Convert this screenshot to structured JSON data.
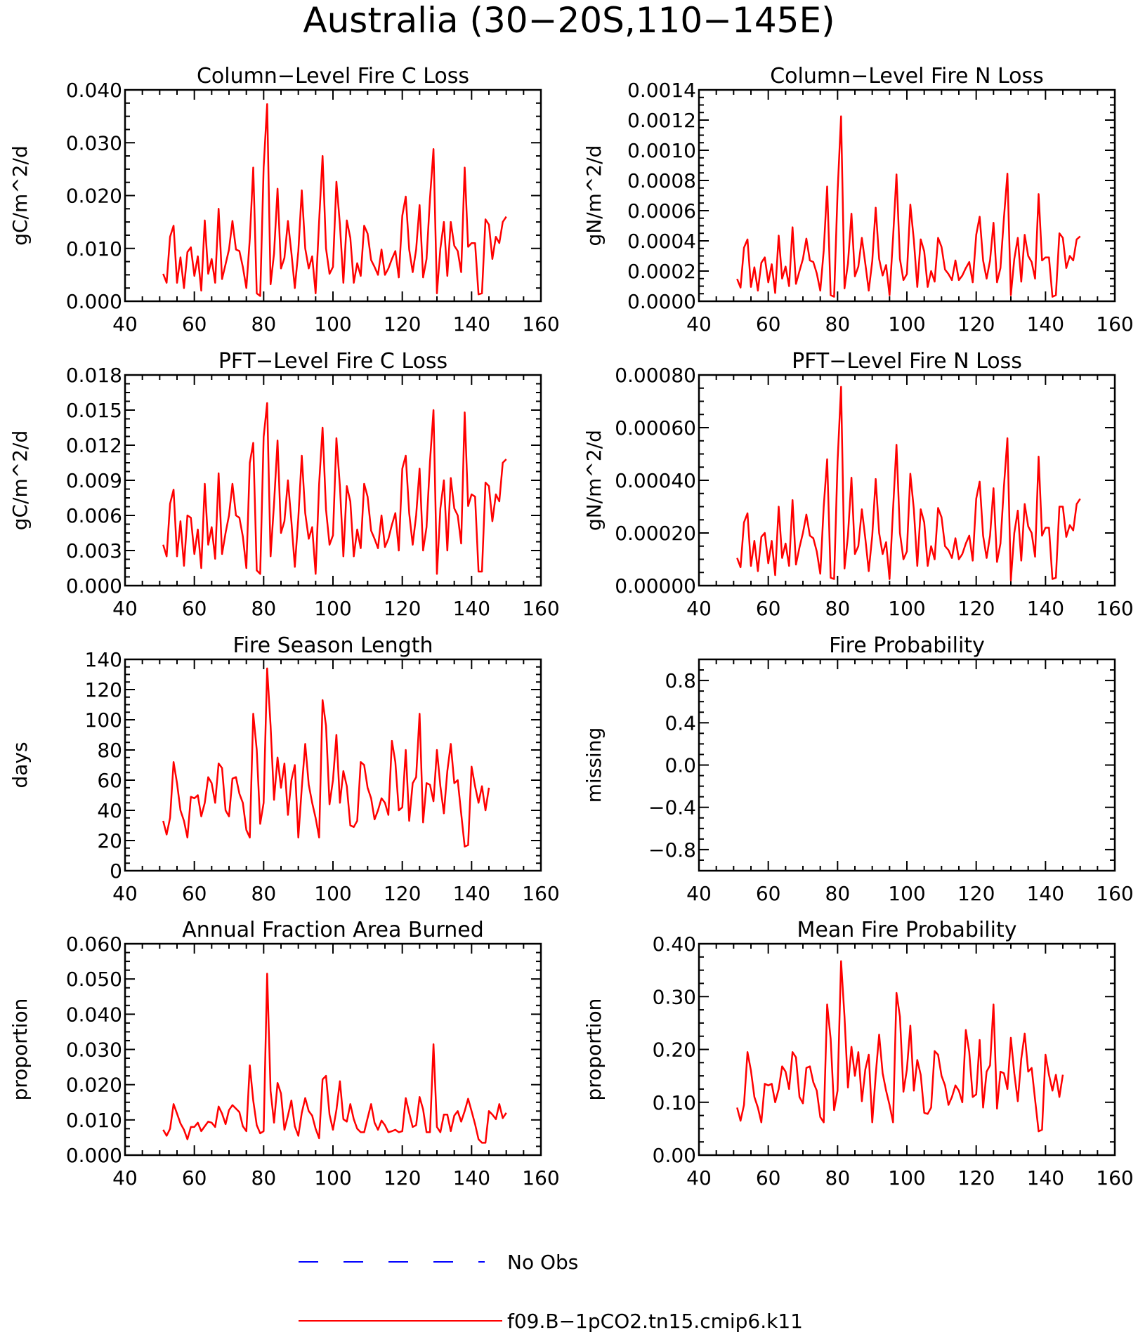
{
  "figure": {
    "title": "Australia (30−20S,110−145E)",
    "series_color": "#ff0000",
    "obs_color": "#0000ff"
  },
  "legend": {
    "obs_label": "No Obs",
    "model_label": "f09.B−1pCO2.tn15.cmip6.k11"
  },
  "chart_data": [
    {
      "type": "line",
      "title": "Column−Level Fire C Loss",
      "ylabel": "gC/m^2/d",
      "xlim": [
        40,
        160
      ],
      "ylim": [
        0,
        0.04
      ],
      "xticks": [
        "40",
        "60",
        "80",
        "100",
        "120",
        "140",
        "160"
      ],
      "yticks": [
        "0.000",
        "0.010",
        "0.020",
        "0.030",
        "0.040"
      ],
      "x_start": 51,
      "series": [
        {
          "name": "f09.B−1pCO2.tn15.cmip6.k11",
          "values": [
            0.0052,
            0.0035,
            0.0122,
            0.0143,
            0.0035,
            0.0083,
            0.0025,
            0.0093,
            0.0102,
            0.0048,
            0.0085,
            0.002,
            0.0153,
            0.0052,
            0.008,
            0.0035,
            0.0175,
            0.0042,
            0.007,
            0.0098,
            0.0152,
            0.0098,
            0.0095,
            0.0065,
            0.0025,
            0.0118,
            0.0253,
            0.0015,
            0.001,
            0.0253,
            0.0373,
            0.0032,
            0.009,
            0.0213,
            0.0062,
            0.0082,
            0.0152,
            0.0092,
            0.0025,
            0.0095,
            0.021,
            0.01,
            0.0062,
            0.0085,
            0.0015,
            0.0152,
            0.0275,
            0.01,
            0.0052,
            0.0065,
            0.0226,
            0.0145,
            0.0035,
            0.0153,
            0.012,
            0.0035,
            0.0072,
            0.0048,
            0.0143,
            0.0128,
            0.0078,
            0.0065,
            0.005,
            0.0098,
            0.005,
            0.0062,
            0.008,
            0.0095,
            0.0045,
            0.0162,
            0.0198,
            0.0098,
            0.0055,
            0.0098,
            0.0182,
            0.0045,
            0.008,
            0.0195,
            0.0288,
            0.0015,
            0.01,
            0.015,
            0.0048,
            0.015,
            0.0105,
            0.0095,
            0.0055,
            0.0253,
            0.0103,
            0.011,
            0.011,
            0.0013,
            0.0015,
            0.0155,
            0.0145,
            0.008,
            0.0122,
            0.011,
            0.015,
            0.016
          ]
        }
      ]
    },
    {
      "type": "line",
      "title": "Column−Level Fire N Loss",
      "ylabel": "gN/m^2/d",
      "xlim": [
        40,
        160
      ],
      "ylim": [
        0,
        0.0014
      ],
      "xticks": [
        "40",
        "60",
        "80",
        "100",
        "120",
        "140",
        "160"
      ],
      "yticks": [
        "0.0000",
        "0.0002",
        "0.0004",
        "0.0006",
        "0.0008",
        "0.0010",
        "0.0012",
        "0.0014"
      ],
      "x_start": 51,
      "series": [
        {
          "name": "f09.B−1pCO2.tn15.cmip6.k11",
          "values": [
            0.000148,
            9e-05,
            0.000355,
            0.00041,
            9.5e-05,
            0.000225,
            7e-05,
            0.000255,
            0.00029,
            0.000125,
            0.000245,
            5.5e-05,
            0.000435,
            0.00015,
            0.00023,
            0.0001,
            0.00049,
            0.000115,
            0.0002,
            0.00028,
            0.000415,
            0.00027,
            0.00026,
            0.000185,
            7e-05,
            0.000335,
            0.00076,
            4e-05,
            3e-05,
            0.00072,
            0.001225,
            8.5e-05,
            0.00025,
            0.00058,
            0.000165,
            0.00023,
            0.00042,
            0.00025,
            7e-05,
            0.000265,
            0.00062,
            0.00028,
            0.00017,
            0.00024,
            4e-05,
            0.00042,
            0.00084,
            0.00028,
            0.00014,
            0.00018,
            0.00064,
            0.000405,
            9.5e-05,
            0.00041,
            0.00033,
            9.5e-05,
            0.0002,
            0.00013,
            0.00042,
            0.00036,
            0.00021,
            0.00018,
            0.00014,
            0.00027,
            0.00014,
            0.00017,
            0.00022,
            0.00026,
            0.000125,
            0.00044,
            0.00056,
            0.00027,
            0.00015,
            0.00027,
            0.00052,
            0.000125,
            0.00022,
            0.00055,
            0.000845,
            4e-05,
            0.00028,
            0.00042,
            0.00013,
            0.00044,
            0.0003,
            0.00026,
            0.00015,
            0.00071,
            0.00027,
            0.00029,
            0.00029,
            3e-05,
            4e-05,
            0.00045,
            0.00042,
            0.00022,
            0.0003,
            0.00027,
            0.00041,
            0.00043
          ]
        }
      ]
    },
    {
      "type": "line",
      "title": "PFT−Level Fire C Loss",
      "ylabel": "gC/m^2/d",
      "xlim": [
        40,
        160
      ],
      "ylim": [
        0,
        0.018
      ],
      "xticks": [
        "40",
        "60",
        "80",
        "100",
        "120",
        "140",
        "160"
      ],
      "yticks": [
        "0.000",
        "0.003",
        "0.006",
        "0.009",
        "0.012",
        "0.015",
        "0.018"
      ],
      "x_start": 51,
      "series": [
        {
          "name": "f09.B−1pCO2.tn15.cmip6.k11",
          "values": [
            0.0035,
            0.0025,
            0.007,
            0.0082,
            0.0025,
            0.0055,
            0.0017,
            0.006,
            0.0058,
            0.0027,
            0.0048,
            0.0015,
            0.0087,
            0.0035,
            0.005,
            0.0023,
            0.0096,
            0.0027,
            0.0045,
            0.006,
            0.0087,
            0.006,
            0.0058,
            0.0042,
            0.0015,
            0.0105,
            0.0122,
            0.0013,
            0.001,
            0.0127,
            0.0156,
            0.0025,
            0.007,
            0.0124,
            0.0045,
            0.0055,
            0.009,
            0.0055,
            0.0016,
            0.0058,
            0.0111,
            0.0062,
            0.004,
            0.005,
            0.001,
            0.0087,
            0.0135,
            0.0065,
            0.0035,
            0.0043,
            0.0126,
            0.0085,
            0.0025,
            0.0085,
            0.0072,
            0.0025,
            0.0048,
            0.0032,
            0.0087,
            0.0076,
            0.0047,
            0.004,
            0.0032,
            0.006,
            0.0033,
            0.004,
            0.0052,
            0.0062,
            0.003,
            0.01,
            0.0111,
            0.0062,
            0.0035,
            0.006,
            0.01,
            0.003,
            0.005,
            0.0106,
            0.015,
            0.001,
            0.0066,
            0.009,
            0.003,
            0.0092,
            0.0066,
            0.006,
            0.0036,
            0.0148,
            0.0068,
            0.0078,
            0.0076,
            0.0012,
            0.0012,
            0.0088,
            0.0085,
            0.0055,
            0.0078,
            0.0072,
            0.0105,
            0.0108
          ]
        }
      ]
    },
    {
      "type": "line",
      "title": "PFT−Level Fire N Loss",
      "ylabel": "gN/m^2/d",
      "xlim": [
        40,
        160
      ],
      "ylim": [
        0,
        0.0008
      ],
      "xticks": [
        "40",
        "60",
        "80",
        "100",
        "120",
        "140",
        "160"
      ],
      "yticks": [
        "0.00000",
        "0.00020",
        "0.00040",
        "0.00060",
        "0.00080"
      ],
      "x_start": 51,
      "series": [
        {
          "name": "f09.B−1pCO2.tn15.cmip6.k11",
          "values": [
            0.000105,
            7e-05,
            0.00024,
            0.000275,
            7.5e-05,
            0.00017,
            5.5e-05,
            0.000185,
            0.0002,
            8.5e-05,
            0.00017,
            4e-05,
            0.0003,
            0.000105,
            0.00016,
            7.5e-05,
            0.000325,
            8e-05,
            0.000145,
            0.0002,
            0.00027,
            0.00019,
            0.00018,
            0.00013,
            4.5e-05,
            0.0003,
            0.00048,
            3e-05,
            2.5e-05,
            0.00047,
            0.000755,
            6.5e-05,
            0.00019,
            0.00041,
            0.00012,
            0.00015,
            0.00029,
            0.00018,
            5.5e-05,
            0.00019,
            0.000405,
            0.0002,
            0.00012,
            0.000165,
            2.5e-05,
            0.00029,
            0.000535,
            0.0002,
            0.0001,
            0.00013,
            0.000425,
            0.00029,
            7.5e-05,
            0.00029,
            0.00024,
            7.5e-05,
            0.00015,
            0.0001,
            0.000295,
            0.00026,
            0.00015,
            0.000135,
            0.000105,
            0.00018,
            0.0001,
            0.00012,
            0.00016,
            0.00019,
            9.5e-05,
            0.00033,
            0.000395,
            0.00019,
            0.000105,
            0.00019,
            0.00037,
            9e-05,
            0.00016,
            0.000375,
            0.00056,
            2e-05,
            0.0002,
            0.000285,
            9.5e-05,
            0.00031,
            0.000225,
            0.0002,
            0.00011,
            0.00049,
            0.00019,
            0.00022,
            0.00022,
            2.5e-05,
            3e-05,
            0.0003,
            0.0003,
            0.000185,
            0.00023,
            0.00021,
            0.00031,
            0.00033
          ]
        }
      ]
    },
    {
      "type": "line",
      "title": "Fire Season Length",
      "ylabel": "days",
      "xlim": [
        40,
        160
      ],
      "ylim": [
        0,
        140
      ],
      "xticks": [
        "40",
        "60",
        "80",
        "100",
        "120",
        "140",
        "160"
      ],
      "yticks": [
        "0",
        "20",
        "40",
        "60",
        "80",
        "100",
        "120",
        "140"
      ],
      "x_start": 51,
      "series": [
        {
          "name": "f09.B−1pCO2.tn15.cmip6.k11",
          "values": [
            33,
            24,
            35,
            72,
            58,
            40,
            33,
            22,
            49,
            48,
            50,
            36,
            45,
            62,
            58,
            45,
            71,
            68,
            40,
            36,
            61,
            62,
            51,
            45,
            27,
            22,
            104,
            80,
            31,
            45,
            134,
            96,
            47,
            75,
            55,
            71,
            37,
            60,
            70,
            22,
            55,
            84,
            57,
            45,
            35,
            22,
            113,
            96,
            44,
            60,
            90,
            45,
            66,
            56,
            30,
            29,
            33,
            72,
            70,
            55,
            48,
            34,
            40,
            48,
            45,
            37,
            86,
            72,
            40,
            42,
            80,
            33,
            58,
            62,
            104,
            32,
            58,
            57,
            46,
            80,
            56,
            38,
            66,
            84,
            58,
            60,
            38,
            16,
            17,
            69,
            56,
            45,
            56,
            40,
            55
          ]
        }
      ]
    },
    {
      "type": "line",
      "title": "Fire Probability",
      "ylabel": "missing",
      "xlim": [
        40,
        160
      ],
      "ylim": [
        -1,
        1
      ],
      "xticks": [
        "40",
        "60",
        "80",
        "100",
        "120",
        "140",
        "160"
      ],
      "yticks": [
        "−0.8",
        "−0.4",
        "0.0",
        "0.4",
        "0.8"
      ],
      "ytick_values": [
        -0.8,
        -0.4,
        0.0,
        0.4,
        0.8
      ],
      "x_start": 51,
      "series": []
    },
    {
      "type": "line",
      "title": "Annual Fraction Area Burned",
      "ylabel": "proportion",
      "xlim": [
        40,
        160
      ],
      "ylim": [
        0,
        0.06
      ],
      "xticks": [
        "40",
        "60",
        "80",
        "100",
        "120",
        "140",
        "160"
      ],
      "yticks": [
        "0.000",
        "0.010",
        "0.020",
        "0.030",
        "0.040",
        "0.050",
        "0.060"
      ],
      "x_start": 51,
      "series": [
        {
          "name": "f09.B−1pCO2.tn15.cmip6.k11",
          "values": [
            0.0072,
            0.0055,
            0.0075,
            0.0145,
            0.0118,
            0.009,
            0.0072,
            0.0045,
            0.008,
            0.008,
            0.0092,
            0.0068,
            0.0082,
            0.0095,
            0.0092,
            0.008,
            0.0138,
            0.0118,
            0.0088,
            0.0128,
            0.0142,
            0.0132,
            0.0122,
            0.0082,
            0.0068,
            0.0255,
            0.0155,
            0.0085,
            0.0062,
            0.0068,
            0.0515,
            0.0182,
            0.0092,
            0.0205,
            0.0175,
            0.0072,
            0.0112,
            0.0155,
            0.0082,
            0.0055,
            0.012,
            0.0162,
            0.0125,
            0.0112,
            0.0075,
            0.0048,
            0.0215,
            0.0225,
            0.0115,
            0.0072,
            0.0128,
            0.021,
            0.0102,
            0.0095,
            0.0145,
            0.0102,
            0.0075,
            0.0065,
            0.0065,
            0.0105,
            0.0145,
            0.0092,
            0.0072,
            0.0098,
            0.0085,
            0.0065,
            0.0068,
            0.0072,
            0.0065,
            0.0068,
            0.0162,
            0.012,
            0.008,
            0.0085,
            0.0165,
            0.013,
            0.0065,
            0.0065,
            0.0315,
            0.008,
            0.0065,
            0.0115,
            0.0115,
            0.0068,
            0.0112,
            0.0125,
            0.0095,
            0.0125,
            0.016,
            0.0125,
            0.0088,
            0.0045,
            0.0035,
            0.0035,
            0.0125,
            0.0115,
            0.0102,
            0.0145,
            0.0105,
            0.012
          ]
        }
      ]
    },
    {
      "type": "line",
      "title": "Mean Fire Probability",
      "ylabel": "proportion",
      "xlim": [
        40,
        160
      ],
      "ylim": [
        0,
        0.4
      ],
      "xticks": [
        "40",
        "60",
        "80",
        "100",
        "120",
        "140",
        "160"
      ],
      "yticks": [
        "0.00",
        "0.10",
        "0.20",
        "0.30",
        "0.40"
      ],
      "x_start": 51,
      "series": [
        {
          "name": "f09.B−1pCO2.tn15.cmip6.k11",
          "values": [
            0.09,
            0.065,
            0.095,
            0.195,
            0.16,
            0.11,
            0.09,
            0.062,
            0.135,
            0.132,
            0.135,
            0.1,
            0.125,
            0.168,
            0.158,
            0.125,
            0.195,
            0.185,
            0.11,
            0.098,
            0.165,
            0.168,
            0.138,
            0.122,
            0.072,
            0.062,
            0.285,
            0.22,
            0.085,
            0.122,
            0.367,
            0.262,
            0.128,
            0.205,
            0.15,
            0.195,
            0.102,
            0.162,
            0.19,
            0.062,
            0.152,
            0.228,
            0.155,
            0.122,
            0.095,
            0.062,
            0.307,
            0.262,
            0.12,
            0.162,
            0.245,
            0.122,
            0.18,
            0.152,
            0.08,
            0.078,
            0.09,
            0.197,
            0.19,
            0.15,
            0.132,
            0.095,
            0.11,
            0.132,
            0.122,
            0.1,
            0.237,
            0.195,
            0.11,
            0.115,
            0.218,
            0.09,
            0.158,
            0.17,
            0.285,
            0.088,
            0.158,
            0.155,
            0.125,
            0.222,
            0.155,
            0.102,
            0.182,
            0.23,
            0.158,
            0.165,
            0.105,
            0.045,
            0.048,
            0.19,
            0.152,
            0.122,
            0.152,
            0.11,
            0.152
          ]
        }
      ]
    }
  ]
}
